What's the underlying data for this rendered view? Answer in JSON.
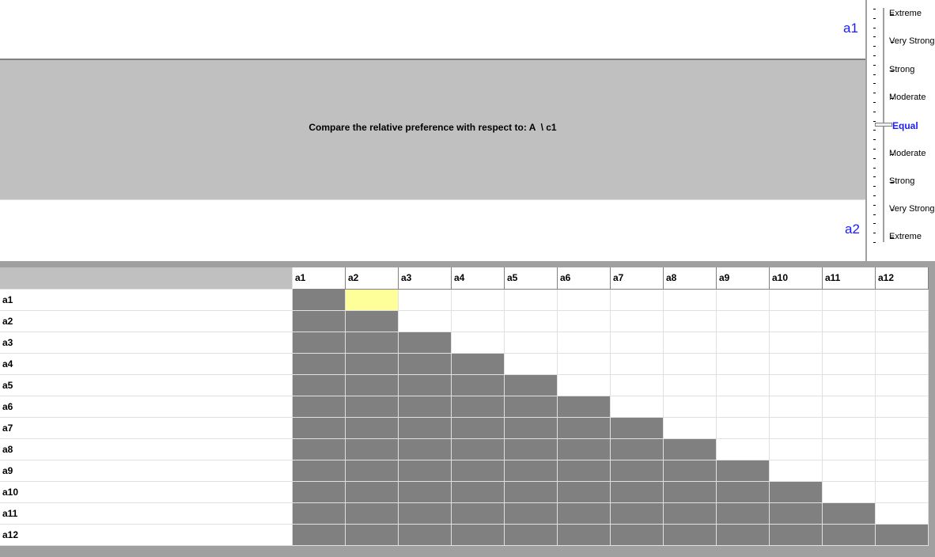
{
  "comparison": {
    "top_label": "a1",
    "bottom_label": "a2",
    "prompt": "Compare the relative preference with respect to: A  \\ c1"
  },
  "scale": [
    "Extreme",
    "Very Strong",
    "Strong",
    "Moderate",
    "Equal",
    "Moderate",
    "Strong",
    "Very Strong",
    "Extreme"
  ],
  "matrix": {
    "columns": [
      "a1",
      "a2",
      "a3",
      "a4",
      "a5",
      "a6",
      "a7",
      "a8",
      "a9",
      "a10",
      "a11",
      "a12"
    ],
    "rows": [
      "a1",
      "a2",
      "a3",
      "a4",
      "a5",
      "a6",
      "a7",
      "a8",
      "a9",
      "a10",
      "a11",
      "a12"
    ]
  }
}
